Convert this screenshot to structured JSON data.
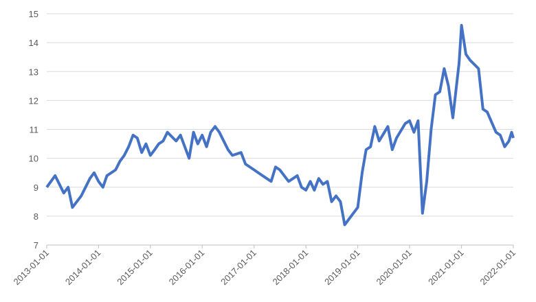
{
  "chart_data": {
    "type": "line",
    "x": [
      "2013-01-01",
      "2013-03-01",
      "2013-05-01",
      "2013-06-01",
      "2013-07-01",
      "2013-09-01",
      "2013-11-01",
      "2013-12-01",
      "2014-01-01",
      "2014-02-01",
      "2014-03-01",
      "2014-05-01",
      "2014-06-01",
      "2014-07-01",
      "2014-08-01",
      "2014-09-01",
      "2014-10-01",
      "2014-11-01",
      "2014-12-01",
      "2015-01-01",
      "2015-02-01",
      "2015-03-01",
      "2015-04-01",
      "2015-05-01",
      "2015-07-01",
      "2015-08-01",
      "2015-10-01",
      "2015-11-01",
      "2015-12-01",
      "2016-01-01",
      "2016-02-01",
      "2016-03-01",
      "2016-04-01",
      "2016-05-01",
      "2016-07-01",
      "2016-08-01",
      "2016-10-01",
      "2016-11-01",
      "2017-01-01",
      "2017-03-01",
      "2017-05-01",
      "2017-06-01",
      "2017-07-01",
      "2017-09-01",
      "2017-11-01",
      "2017-12-01",
      "2018-01-01",
      "2018-02-01",
      "2018-03-01",
      "2018-04-01",
      "2018-05-01",
      "2018-06-01",
      "2018-07-01",
      "2018-08-01",
      "2018-09-01",
      "2018-10-01",
      "2018-12-01",
      "2019-01-01",
      "2019-02-01",
      "2019-03-01",
      "2019-04-01",
      "2019-05-01",
      "2019-06-01",
      "2019-08-01",
      "2019-09-01",
      "2019-10-01",
      "2019-12-01",
      "2020-01-01",
      "2020-02-01",
      "2020-03-01",
      "2020-04-01",
      "2020-05-01",
      "2020-06-01",
      "2020-07-01",
      "2020-08-01",
      "2020-09-01",
      "2020-10-01",
      "2020-11-01",
      "2020-12-01",
      "2020-12-15",
      "2021-01-01",
      "2021-02-01",
      "2021-03-01",
      "2021-05-01",
      "2021-06-01",
      "2021-07-01",
      "2021-09-01",
      "2021-10-01",
      "2021-11-01",
      "2021-12-01",
      "2021-12-20",
      "2022-01-01"
    ],
    "series": [
      {
        "color": "#4472c4",
        "values": [
          9.0,
          9.4,
          8.8,
          9.0,
          8.3,
          8.7,
          9.3,
          9.5,
          9.2,
          9.0,
          9.4,
          9.6,
          9.9,
          10.1,
          10.4,
          10.8,
          10.7,
          10.2,
          10.5,
          10.1,
          10.3,
          10.5,
          10.6,
          10.9,
          10.6,
          10.8,
          10.0,
          10.9,
          10.5,
          10.8,
          10.4,
          10.9,
          11.1,
          10.9,
          10.3,
          10.1,
          10.2,
          9.8,
          9.6,
          9.4,
          9.2,
          9.7,
          9.6,
          9.2,
          9.4,
          9.0,
          8.9,
          9.2,
          8.9,
          9.3,
          9.1,
          9.2,
          8.5,
          8.7,
          8.5,
          7.7,
          8.1,
          8.3,
          9.5,
          10.3,
          10.4,
          11.1,
          10.6,
          11.1,
          10.3,
          10.7,
          11.2,
          11.3,
          10.9,
          11.3,
          8.1,
          9.2,
          11.0,
          12.2,
          12.3,
          13.1,
          12.5,
          11.4,
          12.7,
          13.3,
          14.6,
          13.6,
          13.4,
          13.1,
          11.7,
          11.6,
          10.9,
          10.8,
          10.4,
          10.6,
          10.9,
          10.7
        ]
      }
    ],
    "xlim": [
      "2013-01-01",
      "2022-01-01"
    ],
    "xticks": [
      "2013-01-01",
      "2014-01-01",
      "2015-01-01",
      "2016-01-01",
      "2017-01-01",
      "2018-01-01",
      "2019-01-01",
      "2020-01-01",
      "2021-01-01",
      "2022-01-01"
    ],
    "ylim": [
      7,
      15
    ],
    "yticks": [
      7,
      8,
      9,
      10,
      11,
      12,
      13,
      14,
      15
    ],
    "grid": true
  }
}
